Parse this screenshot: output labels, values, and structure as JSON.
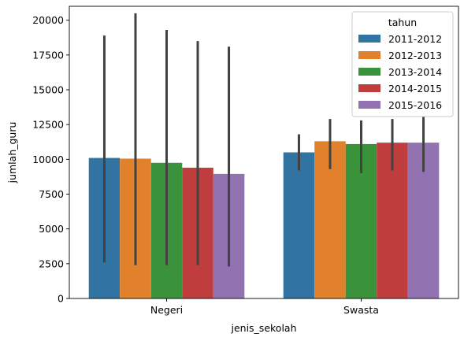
{
  "chart_data": {
    "type": "bar",
    "xlabel": "jenis_sekolah",
    "ylabel": "jumlah_guru",
    "categories": [
      "Negeri",
      "Swasta"
    ],
    "ylim": [
      0,
      21000
    ],
    "yticks": [
      0,
      2500,
      5000,
      7500,
      10000,
      12500,
      15000,
      17500,
      20000
    ],
    "legend_title": "tahun",
    "legend_position": "top-right",
    "grid": false,
    "series": [
      {
        "name": "2011-2012",
        "color": "#3274a1",
        "values": [
          10100,
          10500
        ],
        "err_low": [
          2600,
          9200
        ],
        "err_high": [
          18900,
          11800
        ]
      },
      {
        "name": "2012-2013",
        "color": "#e1812c",
        "values": [
          10050,
          11300
        ],
        "err_low": [
          2400,
          9300
        ],
        "err_high": [
          20500,
          12900
        ]
      },
      {
        "name": "2013-2014",
        "color": "#3a923a",
        "values": [
          9750,
          11100
        ],
        "err_low": [
          2400,
          9000
        ],
        "err_high": [
          19300,
          12800
        ]
      },
      {
        "name": "2014-2015",
        "color": "#c03d3e",
        "values": [
          9400,
          11200
        ],
        "err_low": [
          2400,
          9200
        ],
        "err_high": [
          18500,
          12900
        ]
      },
      {
        "name": "2015-2016",
        "color": "#9372b2",
        "values": [
          8950,
          11200
        ],
        "err_low": [
          2300,
          9100
        ],
        "err_high": [
          18100,
          13100
        ]
      }
    ]
  }
}
